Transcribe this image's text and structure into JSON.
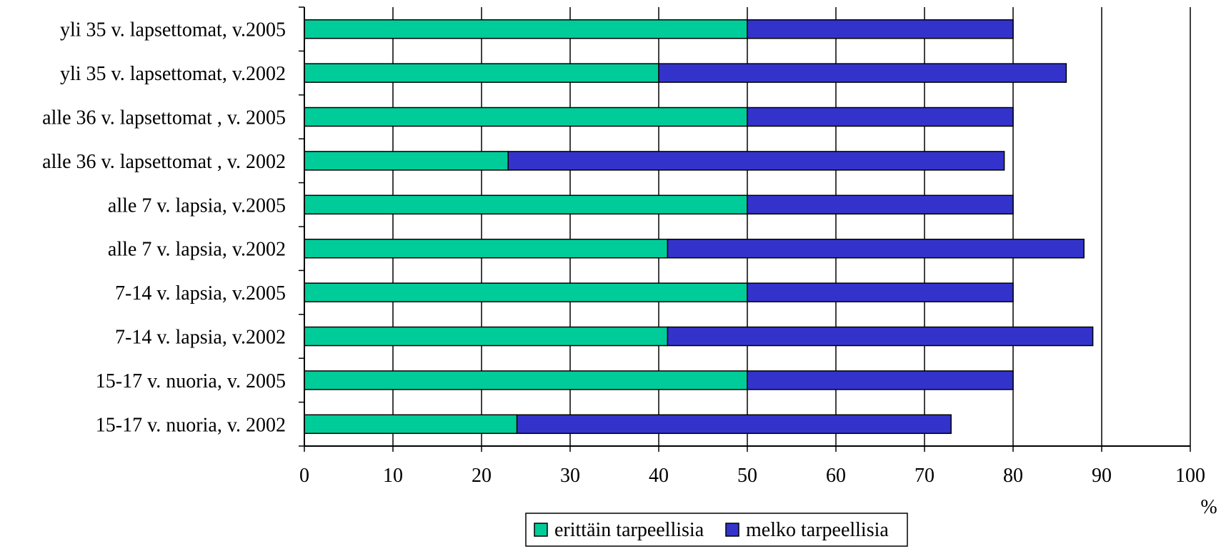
{
  "chart_data": {
    "type": "bar",
    "orientation": "horizontal",
    "stacked": true,
    "categories": [
      "yli 35 v. lapsettomat, v.2005",
      "yli 35 v. lapsettomat, v.2002",
      "alle 36 v. lapsettomat , v. 2005",
      "alle 36 v. lapsettomat , v. 2002",
      "alle 7 v. lapsia, v.2005",
      "alle 7 v. lapsia, v.2002",
      "7-14 v. lapsia, v.2005",
      "7-14 v. lapsia, v.2002",
      "15-17 v. nuoria, v. 2005",
      "15-17 v. nuoria, v. 2002"
    ],
    "series": [
      {
        "name": "erittäin tarpeellisia",
        "color": "#00cc99",
        "values": [
          50,
          40,
          50,
          23,
          50,
          41,
          50,
          41,
          50,
          24
        ]
      },
      {
        "name": "melko tarpeellisia",
        "color": "#3333cc",
        "values": [
          30,
          46,
          30,
          56,
          30,
          47,
          30,
          48,
          30,
          49
        ]
      }
    ],
    "xlim": [
      0,
      100
    ],
    "xticks": [
      0,
      10,
      20,
      30,
      40,
      50,
      60,
      70,
      80,
      90,
      100
    ],
    "xunit": "%",
    "grid": "vertical",
    "legend": "bottom-center"
  }
}
